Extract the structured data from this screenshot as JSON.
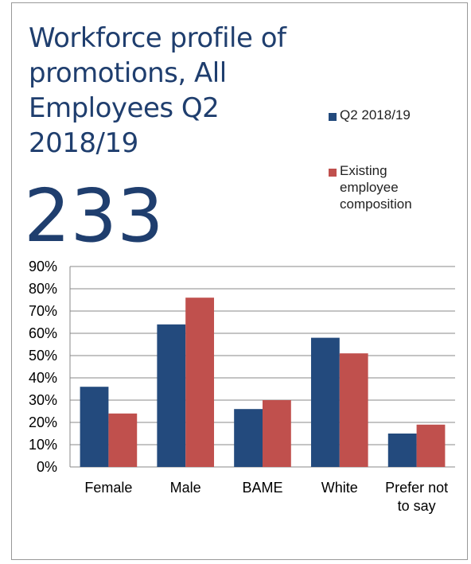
{
  "chart_data": {
    "type": "bar",
    "title": "Workforce profile of promotions,  All Employees Q2 2018/19",
    "headline": "233",
    "categories": [
      "Female",
      "Male",
      "BAME",
      "White",
      "Prefer not to say"
    ],
    "series": [
      {
        "name": "Q2 2018/19",
        "color": "#234a7d",
        "values": [
          36,
          64,
          26,
          58,
          15
        ]
      },
      {
        "name": "Existing employee composition",
        "color": "#c0504d",
        "values": [
          24,
          76,
          30,
          51,
          19
        ]
      }
    ],
    "ylim": [
      0,
      90
    ],
    "yticks": [
      {
        "value": 0,
        "label": "0%"
      },
      {
        "value": 10,
        "label": "10%"
      },
      {
        "value": 20,
        "label": "20%"
      },
      {
        "value": 30,
        "label": "30%"
      },
      {
        "value": 40,
        "label": "40%"
      },
      {
        "value": 50,
        "label": "50%"
      },
      {
        "value": 60,
        "label": "60%"
      },
      {
        "value": 70,
        "label": "70%"
      },
      {
        "value": 80,
        "label": "80%"
      },
      {
        "value": 90,
        "label": "90%"
      }
    ],
    "grid": true
  }
}
